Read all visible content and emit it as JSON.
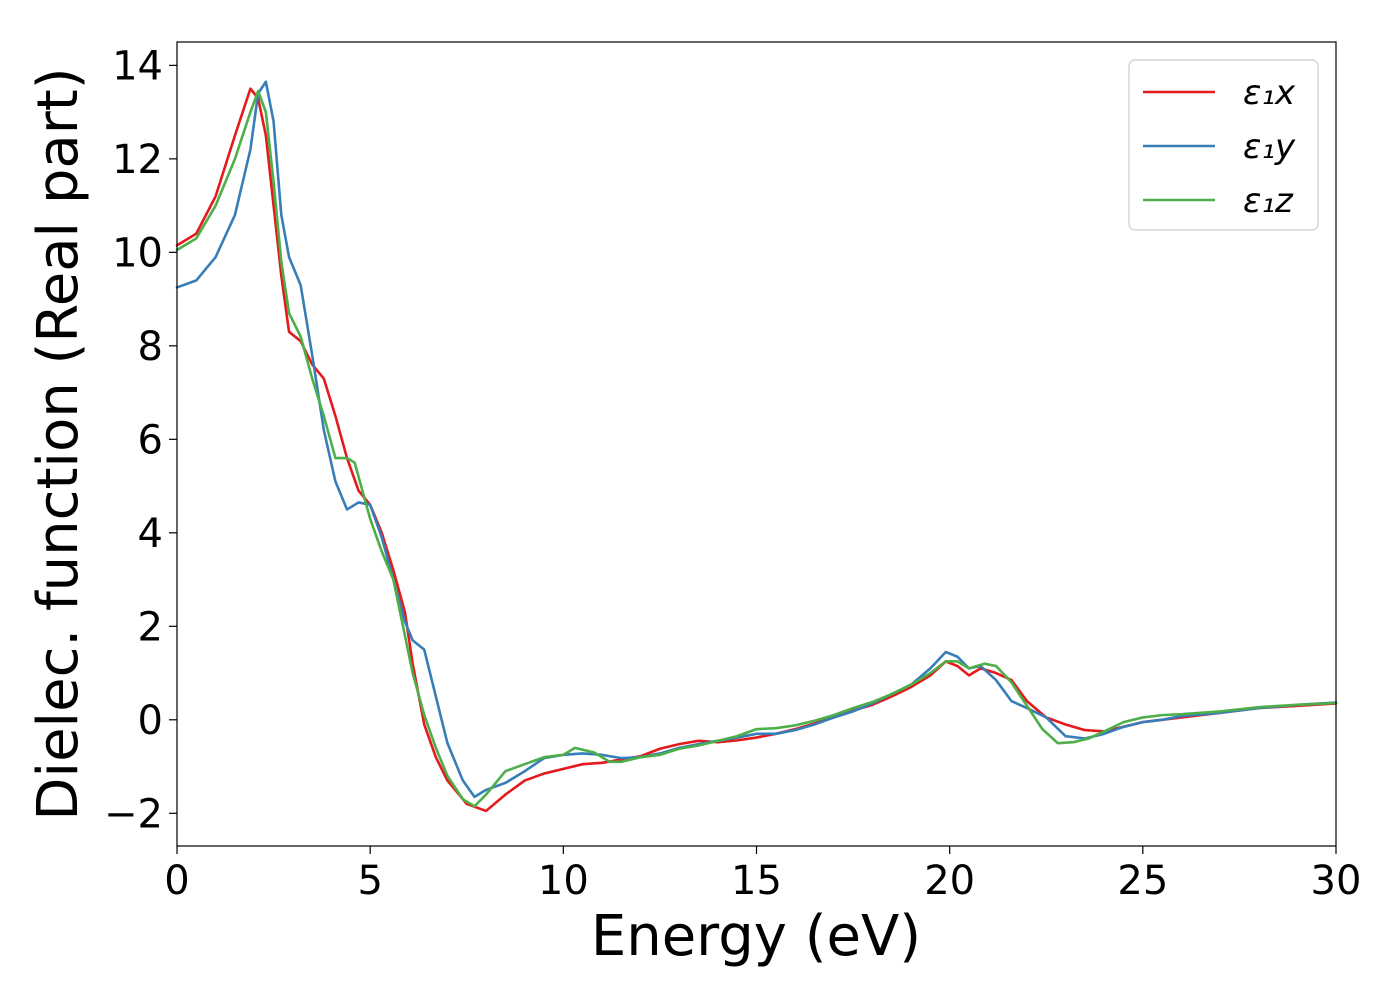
{
  "chart_data": {
    "type": "line",
    "xlabel": "Energy (eV)",
    "ylabel": "Dielec. function (Real part)",
    "xlim": [
      0,
      30
    ],
    "ylim": [
      -2.7,
      14.5
    ],
    "xticks": [
      0,
      5,
      10,
      15,
      20,
      25,
      30
    ],
    "yticks": [
      -2,
      0,
      2,
      4,
      6,
      8,
      10,
      12,
      14
    ],
    "xtick_labels": [
      "0",
      "5",
      "10",
      "15",
      "20",
      "25",
      "30"
    ],
    "ytick_labels": [
      "−2",
      "0",
      "2",
      "4",
      "6",
      "8",
      "10",
      "12",
      "14"
    ],
    "grid": false,
    "legend_position": "top-right",
    "series": [
      {
        "name": "ε₁x",
        "color": "#e41a1c",
        "points": [
          [
            0,
            10.15
          ],
          [
            0.5,
            10.4
          ],
          [
            1.0,
            11.2
          ],
          [
            1.5,
            12.5
          ],
          [
            1.9,
            13.5
          ],
          [
            2.1,
            13.3
          ],
          [
            2.3,
            12.5
          ],
          [
            2.5,
            11.0
          ],
          [
            2.7,
            9.5
          ],
          [
            2.9,
            8.3
          ],
          [
            3.2,
            8.1
          ],
          [
            3.5,
            7.6
          ],
          [
            3.8,
            7.3
          ],
          [
            4.1,
            6.5
          ],
          [
            4.4,
            5.6
          ],
          [
            4.7,
            4.9
          ],
          [
            5.0,
            4.6
          ],
          [
            5.3,
            4.0
          ],
          [
            5.6,
            3.2
          ],
          [
            5.9,
            2.3
          ],
          [
            6.1,
            1.2
          ],
          [
            6.4,
            -0.1
          ],
          [
            6.7,
            -0.8
          ],
          [
            7.0,
            -1.3
          ],
          [
            7.5,
            -1.8
          ],
          [
            8.0,
            -1.95
          ],
          [
            8.5,
            -1.6
          ],
          [
            9.0,
            -1.3
          ],
          [
            9.5,
            -1.15
          ],
          [
            10.0,
            -1.05
          ],
          [
            10.5,
            -0.95
          ],
          [
            11.0,
            -0.92
          ],
          [
            11.5,
            -0.85
          ],
          [
            12.0,
            -0.78
          ],
          [
            12.5,
            -0.62
          ],
          [
            13.0,
            -0.52
          ],
          [
            13.5,
            -0.45
          ],
          [
            14.0,
            -0.48
          ],
          [
            14.5,
            -0.44
          ],
          [
            15.0,
            -0.38
          ],
          [
            15.5,
            -0.3
          ],
          [
            16.0,
            -0.2
          ],
          [
            16.5,
            -0.08
          ],
          [
            17.0,
            0.05
          ],
          [
            17.5,
            0.2
          ],
          [
            18.0,
            0.32
          ],
          [
            18.5,
            0.5
          ],
          [
            19.0,
            0.7
          ],
          [
            19.5,
            0.95
          ],
          [
            19.9,
            1.25
          ],
          [
            20.2,
            1.15
          ],
          [
            20.5,
            0.95
          ],
          [
            20.8,
            1.1
          ],
          [
            21.2,
            1.0
          ],
          [
            21.6,
            0.85
          ],
          [
            22.0,
            0.4
          ],
          [
            22.5,
            0.05
          ],
          [
            23.0,
            -0.1
          ],
          [
            23.5,
            -0.22
          ],
          [
            24.0,
            -0.25
          ],
          [
            24.5,
            -0.15
          ],
          [
            25.0,
            -0.05
          ],
          [
            25.5,
            0.0
          ],
          [
            26.0,
            0.05
          ],
          [
            27.0,
            0.15
          ],
          [
            28.0,
            0.25
          ],
          [
            29.0,
            0.3
          ],
          [
            30.0,
            0.35
          ]
        ]
      },
      {
        "name": "ε₁y",
        "color": "#377eb8",
        "points": [
          [
            0,
            9.25
          ],
          [
            0.5,
            9.4
          ],
          [
            1.0,
            9.9
          ],
          [
            1.5,
            10.8
          ],
          [
            1.9,
            12.2
          ],
          [
            2.1,
            13.4
          ],
          [
            2.3,
            13.65
          ],
          [
            2.5,
            12.8
          ],
          [
            2.7,
            10.8
          ],
          [
            2.9,
            9.9
          ],
          [
            3.2,
            9.3
          ],
          [
            3.5,
            7.8
          ],
          [
            3.8,
            6.2
          ],
          [
            4.1,
            5.1
          ],
          [
            4.4,
            4.5
          ],
          [
            4.7,
            4.65
          ],
          [
            5.0,
            4.6
          ],
          [
            5.3,
            3.9
          ],
          [
            5.6,
            3.0
          ],
          [
            5.9,
            2.1
          ],
          [
            6.1,
            1.7
          ],
          [
            6.4,
            1.5
          ],
          [
            6.7,
            0.5
          ],
          [
            7.0,
            -0.5
          ],
          [
            7.4,
            -1.3
          ],
          [
            7.7,
            -1.65
          ],
          [
            8.0,
            -1.5
          ],
          [
            8.5,
            -1.35
          ],
          [
            9.0,
            -1.1
          ],
          [
            9.5,
            -0.82
          ],
          [
            10.0,
            -0.75
          ],
          [
            10.5,
            -0.72
          ],
          [
            11.0,
            -0.75
          ],
          [
            11.5,
            -0.82
          ],
          [
            12.0,
            -0.8
          ],
          [
            12.5,
            -0.72
          ],
          [
            13.0,
            -0.6
          ],
          [
            13.5,
            -0.52
          ],
          [
            14.0,
            -0.45
          ],
          [
            14.5,
            -0.38
          ],
          [
            15.0,
            -0.3
          ],
          [
            15.5,
            -0.3
          ],
          [
            16.0,
            -0.22
          ],
          [
            16.5,
            -0.1
          ],
          [
            17.0,
            0.05
          ],
          [
            17.5,
            0.18
          ],
          [
            18.0,
            0.35
          ],
          [
            18.5,
            0.55
          ],
          [
            19.0,
            0.75
          ],
          [
            19.5,
            1.1
          ],
          [
            19.9,
            1.45
          ],
          [
            20.2,
            1.35
          ],
          [
            20.5,
            1.1
          ],
          [
            20.8,
            1.15
          ],
          [
            21.2,
            0.85
          ],
          [
            21.6,
            0.4
          ],
          [
            22.0,
            0.25
          ],
          [
            22.5,
            0.05
          ],
          [
            23.0,
            -0.35
          ],
          [
            23.5,
            -0.4
          ],
          [
            24.0,
            -0.3
          ],
          [
            24.5,
            -0.15
          ],
          [
            25.0,
            -0.05
          ],
          [
            25.5,
            0.0
          ],
          [
            26.0,
            0.08
          ],
          [
            27.0,
            0.15
          ],
          [
            28.0,
            0.25
          ],
          [
            29.0,
            0.32
          ],
          [
            30.0,
            0.37
          ]
        ]
      },
      {
        "name": "ε₁z",
        "color": "#4daf4a",
        "points": [
          [
            0,
            10.05
          ],
          [
            0.5,
            10.3
          ],
          [
            1.0,
            11.0
          ],
          [
            1.5,
            12.0
          ],
          [
            1.9,
            13.0
          ],
          [
            2.1,
            13.45
          ],
          [
            2.3,
            13.0
          ],
          [
            2.5,
            11.5
          ],
          [
            2.7,
            9.8
          ],
          [
            2.9,
            8.7
          ],
          [
            3.2,
            8.2
          ],
          [
            3.5,
            7.3
          ],
          [
            3.8,
            6.5
          ],
          [
            4.1,
            5.6
          ],
          [
            4.4,
            5.6
          ],
          [
            4.6,
            5.5
          ],
          [
            5.0,
            4.3
          ],
          [
            5.3,
            3.6
          ],
          [
            5.6,
            3.0
          ],
          [
            5.9,
            1.8
          ],
          [
            6.1,
            1.0
          ],
          [
            6.4,
            0.1
          ],
          [
            6.7,
            -0.6
          ],
          [
            7.0,
            -1.2
          ],
          [
            7.4,
            -1.7
          ],
          [
            7.7,
            -1.85
          ],
          [
            8.0,
            -1.6
          ],
          [
            8.5,
            -1.1
          ],
          [
            9.0,
            -0.95
          ],
          [
            9.5,
            -0.8
          ],
          [
            10.0,
            -0.75
          ],
          [
            10.3,
            -0.6
          ],
          [
            10.8,
            -0.7
          ],
          [
            11.2,
            -0.9
          ],
          [
            11.5,
            -0.9
          ],
          [
            12.0,
            -0.8
          ],
          [
            12.5,
            -0.75
          ],
          [
            13.0,
            -0.62
          ],
          [
            13.5,
            -0.55
          ],
          [
            14.0,
            -0.45
          ],
          [
            14.5,
            -0.35
          ],
          [
            15.0,
            -0.2
          ],
          [
            15.5,
            -0.18
          ],
          [
            16.0,
            -0.12
          ],
          [
            16.5,
            -0.02
          ],
          [
            17.0,
            0.1
          ],
          [
            17.5,
            0.25
          ],
          [
            18.0,
            0.38
          ],
          [
            18.5,
            0.55
          ],
          [
            19.0,
            0.75
          ],
          [
            19.5,
            1.0
          ],
          [
            19.9,
            1.25
          ],
          [
            20.2,
            1.25
          ],
          [
            20.5,
            1.1
          ],
          [
            20.9,
            1.2
          ],
          [
            21.2,
            1.15
          ],
          [
            21.6,
            0.8
          ],
          [
            22.0,
            0.3
          ],
          [
            22.4,
            -0.2
          ],
          [
            22.8,
            -0.5
          ],
          [
            23.2,
            -0.48
          ],
          [
            23.6,
            -0.4
          ],
          [
            24.0,
            -0.25
          ],
          [
            24.5,
            -0.05
          ],
          [
            25.0,
            0.05
          ],
          [
            25.5,
            0.1
          ],
          [
            26.0,
            0.12
          ],
          [
            27.0,
            0.18
          ],
          [
            28.0,
            0.27
          ],
          [
            29.0,
            0.32
          ],
          [
            30.0,
            0.36
          ]
        ]
      }
    ]
  }
}
